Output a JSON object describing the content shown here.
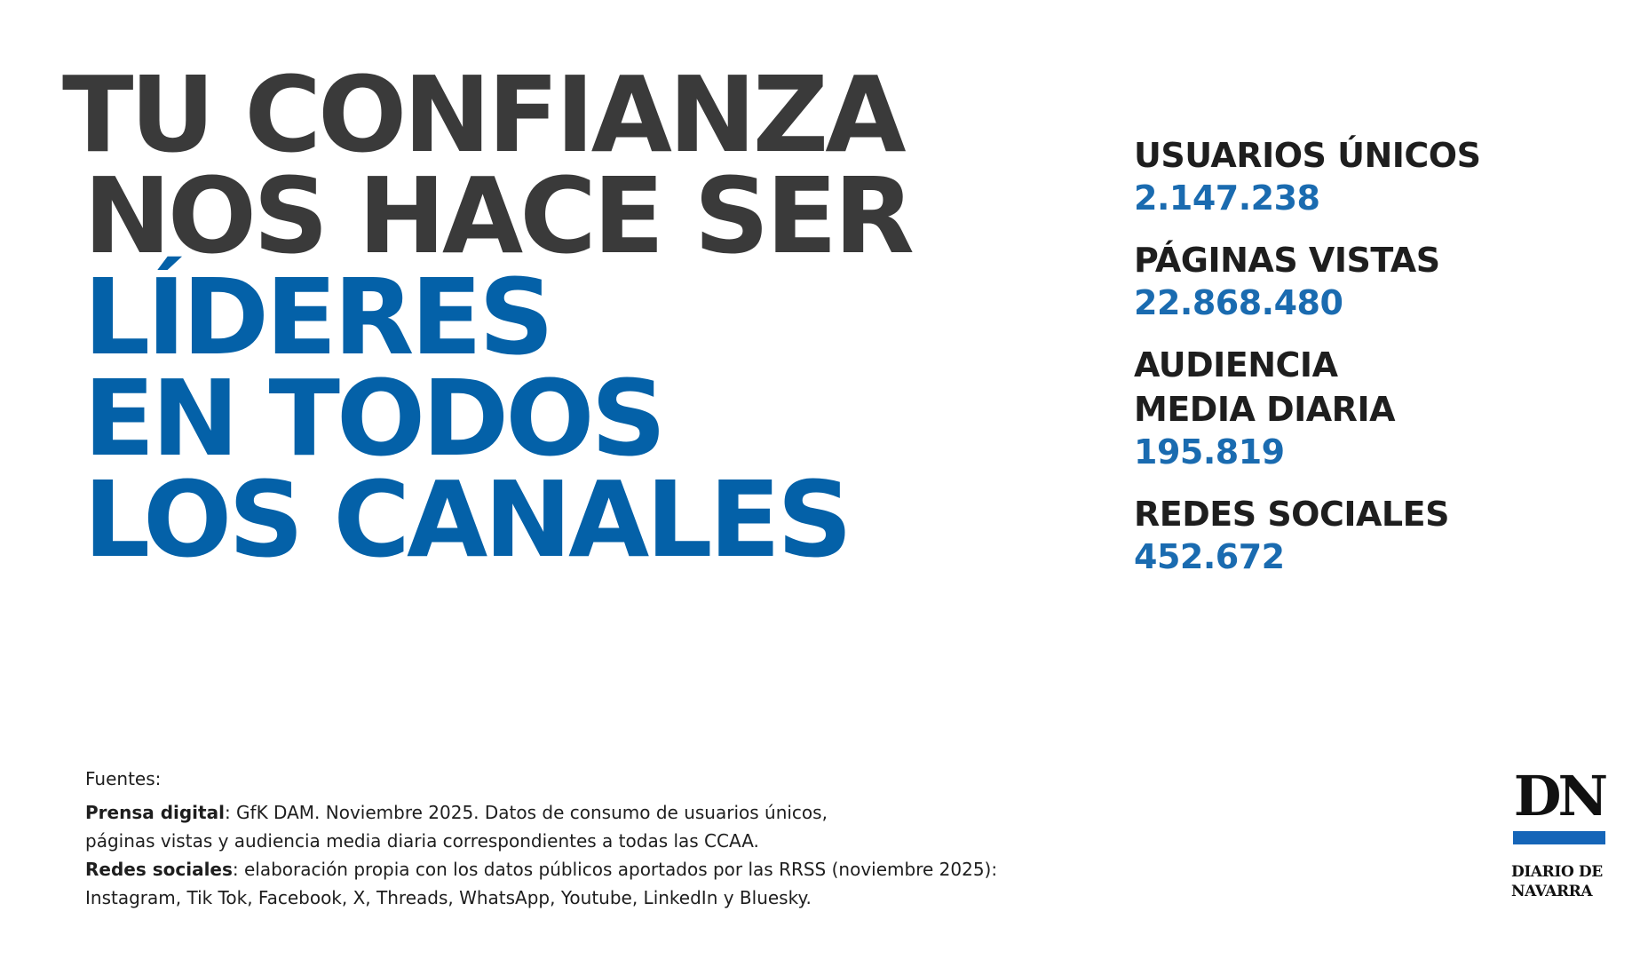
{
  "headline": {
    "line1": "TU CONFIANZA",
    "line2": "NOS HACE SER",
    "line3": "LÍDERES",
    "line4": "EN TODOS",
    "line5": "LOS CANALES"
  },
  "stats": [
    {
      "label": "USUARIOS ÚNICOS",
      "value": "2.147.238"
    },
    {
      "label": "PÁGINAS VISTAS",
      "value": "22.868.480"
    },
    {
      "label": "AUDIENCIA\nMEDIA DIARIA",
      "value": "195.819"
    },
    {
      "label": "REDES SOCIALES",
      "value": "452.672"
    }
  ],
  "sources": {
    "title": "Fuentes:",
    "digital_label": "Prensa digital",
    "digital_text_1": ": GfK DAM. Noviembre 2025. Datos de consumo de usuarios únicos,",
    "digital_text_2": "páginas vistas y audiencia media diaria correspondientes a todas las CCAA.",
    "social_label": "Redes sociales",
    "social_text_1": ": elaboración propia con los datos públicos aportados por las RRSS (noviembre 2025):",
    "social_text_2": "Instagram, Tik Tok, Facebook, X, Threads, WhatsApp, Youtube, LinkedIn y Bluesky."
  },
  "logo": {
    "mark": "DN",
    "text": "DIARIO DE\nNAVARRA"
  },
  "colors": {
    "headline_dark": "#3a3a3a",
    "brand_blue": "#0461a8",
    "stat_blue": "#1a6bb0",
    "text_dark": "#1e1e1e"
  }
}
